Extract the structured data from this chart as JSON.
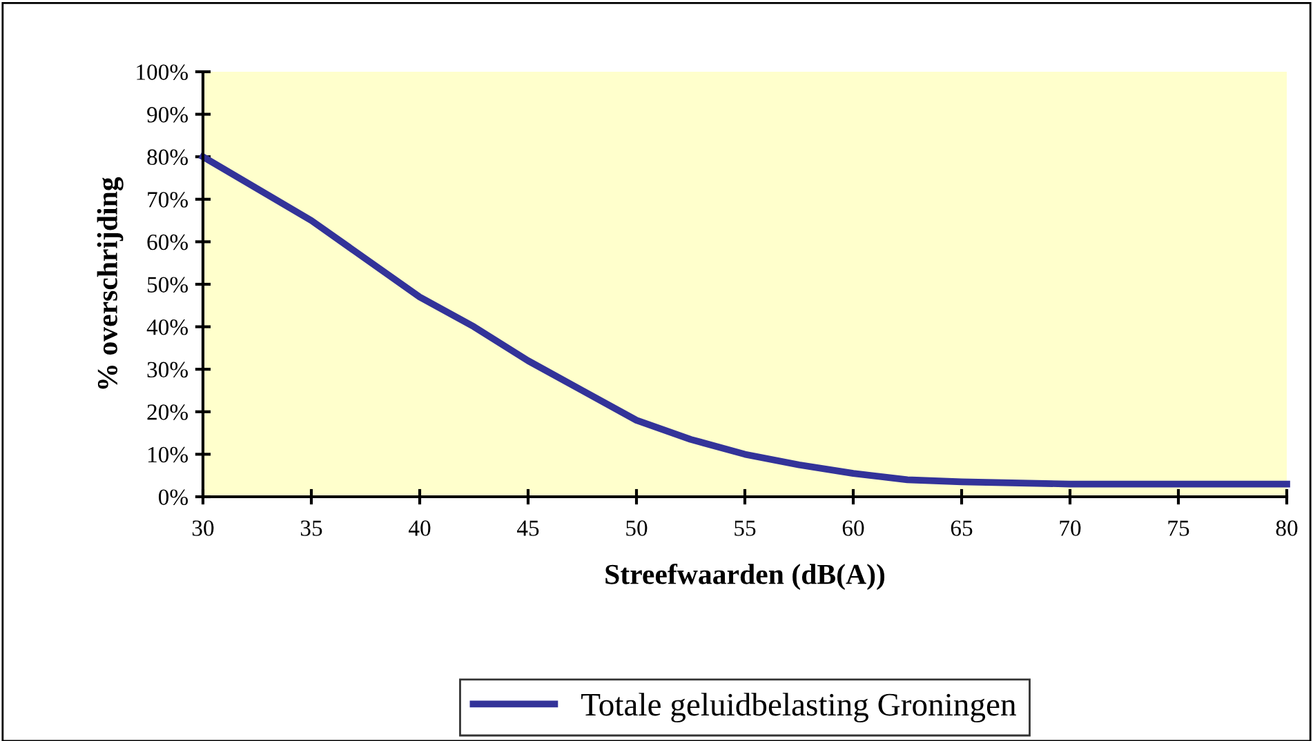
{
  "chart_data": {
    "type": "line",
    "xlabel": "Streefwaarden (dB(A))",
    "ylabel": "% overschrijding",
    "x": [
      30,
      35,
      40,
      42.5,
      45,
      47.5,
      50,
      52.5,
      55,
      57.5,
      60,
      62.5,
      65,
      70,
      75,
      80
    ],
    "series": [
      {
        "name": "Totale geluidbelasting Groningen",
        "color": "#333399",
        "values": [
          80,
          65,
          47,
          40,
          32,
          25,
          18,
          13.5,
          10,
          7.5,
          5.5,
          4,
          3.5,
          3,
          3,
          3
        ]
      }
    ],
    "xlim": [
      30,
      80
    ],
    "xticks": [
      30,
      35,
      40,
      45,
      50,
      55,
      60,
      65,
      70,
      75,
      80
    ],
    "ylim": [
      0,
      100
    ],
    "yticks": [
      {
        "value": 0,
        "label": "0%"
      },
      {
        "value": 10,
        "label": "10%"
      },
      {
        "value": 20,
        "label": "20%"
      },
      {
        "value": 30,
        "label": "30%"
      },
      {
        "value": 40,
        "label": "40%"
      },
      {
        "value": 50,
        "label": "50%"
      },
      {
        "value": 60,
        "label": "60%"
      },
      {
        "value": 70,
        "label": "70%"
      },
      {
        "value": 80,
        "label": "80%"
      },
      {
        "value": 90,
        "label": "90%"
      },
      {
        "value": 100,
        "label": "100%"
      }
    ],
    "grid": false,
    "legend": "bottom",
    "marker": "none",
    "line_style": "solid"
  }
}
